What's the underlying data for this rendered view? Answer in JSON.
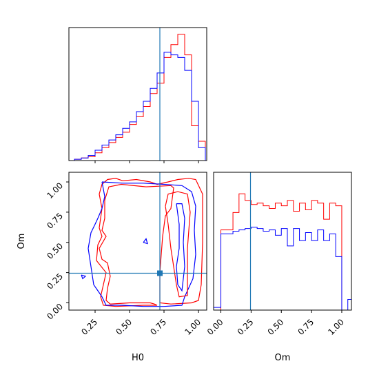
{
  "chart_data": {
    "type": "corner",
    "parameters": [
      "H0",
      "Om"
    ],
    "truths": {
      "H0": 0.72,
      "Om": 0.245
    },
    "truth_color": "#1f77b4",
    "colors": {
      "red": "#ff0000",
      "blue": "#0000ff"
    },
    "ticks": [
      0.0,
      0.25,
      0.5,
      0.75,
      1.0
    ],
    "tick_labels": {
      "H0": [
        "0.25",
        "0.50",
        "0.75",
        "1.00"
      ],
      "Om": [
        "0.00",
        "0.25",
        "0.50",
        "0.75",
        "1.00"
      ]
    },
    "xlabels": {
      "bottom_left": "H0",
      "bottom_right": "Om"
    },
    "ylabel": "Om",
    "ranges": {
      "H0": [
        0.06,
        1.06
      ],
      "Om": [
        -0.06,
        1.08
      ]
    },
    "hist_H0": {
      "edges": [
        0.1,
        0.15,
        0.2,
        0.25,
        0.3,
        0.35,
        0.4,
        0.45,
        0.5,
        0.55,
        0.6,
        0.65,
        0.7,
        0.75,
        0.8,
        0.85,
        0.9,
        0.95,
        1.0,
        1.05
      ],
      "series": [
        {
          "color": "red",
          "values": [
            0.01,
            0.02,
            0.03,
            0.06,
            0.1,
            0.14,
            0.18,
            0.22,
            0.28,
            0.34,
            0.42,
            0.52,
            0.6,
            0.8,
            0.9,
            0.98,
            0.82,
            0.27,
            0.15
          ]
        },
        {
          "color": "blue",
          "values": [
            0.01,
            0.02,
            0.04,
            0.08,
            0.12,
            0.16,
            0.2,
            0.25,
            0.3,
            0.38,
            0.46,
            0.56,
            0.68,
            0.84,
            0.82,
            0.8,
            0.7,
            0.46,
            0.1
          ]
        }
      ]
    },
    "hist_Om": {
      "edges": [
        -0.1,
        -0.05,
        0.0,
        0.05,
        0.1,
        0.15,
        0.2,
        0.25,
        0.3,
        0.35,
        0.4,
        0.45,
        0.5,
        0.55,
        0.6,
        0.65,
        0.7,
        0.75,
        0.8,
        0.85,
        0.9,
        0.95,
        1.0,
        1.05,
        1.1
      ],
      "series": [
        {
          "color": "red",
          "values": [
            0.0,
            0.0,
            0.6,
            0.6,
            0.73,
            0.87,
            0.82,
            0.79,
            0.8,
            0.78,
            0.76,
            0.8,
            0.78,
            0.82,
            0.74,
            0.8,
            0.75,
            0.82,
            0.8,
            0.68,
            0.8,
            0.78,
            0.0,
            0.0
          ]
        },
        {
          "color": "blue",
          "values": [
            0.02,
            0.02,
            0.57,
            0.57,
            0.59,
            0.6,
            0.61,
            0.62,
            0.61,
            0.59,
            0.6,
            0.56,
            0.61,
            0.48,
            0.61,
            0.52,
            0.58,
            0.52,
            0.6,
            0.52,
            0.57,
            0.4,
            0.0,
            0.08
          ]
        }
      ]
    },
    "contours": [
      {
        "color": "red",
        "points": [
          [
            0.45,
            1.01
          ],
          [
            0.55,
            1.02
          ],
          [
            0.65,
            1.0
          ],
          [
            0.7,
            0.98
          ],
          [
            0.78,
            1.0
          ],
          [
            0.85,
            1.02
          ],
          [
            0.93,
            1.03
          ],
          [
            0.98,
            1.02
          ],
          [
            1.03,
            0.9
          ],
          [
            1.03,
            0.5
          ],
          [
            1.02,
            0.15
          ],
          [
            1.0,
            0.02
          ],
          [
            0.95,
            0.0
          ],
          [
            0.8,
            -0.01
          ],
          [
            0.72,
            0.0
          ],
          [
            0.72,
            0.25
          ],
          [
            0.74,
            0.55
          ],
          [
            0.76,
            0.72
          ],
          [
            0.8,
            0.78
          ],
          [
            0.82,
            0.95
          ],
          [
            0.8,
            0.97
          ],
          [
            0.62,
            0.96
          ],
          [
            0.44,
            0.98
          ],
          [
            0.35,
            0.96
          ],
          [
            0.32,
            0.85
          ],
          [
            0.32,
            0.7
          ],
          [
            0.3,
            0.6
          ],
          [
            0.33,
            0.55
          ],
          [
            0.28,
            0.45
          ],
          [
            0.3,
            0.36
          ],
          [
            0.34,
            0.33
          ],
          [
            0.36,
            0.22
          ],
          [
            0.34,
            0.12
          ],
          [
            0.33,
            0.02
          ],
          [
            0.36,
            -0.01
          ],
          [
            0.5,
            0.0
          ],
          [
            0.65,
            0.0
          ],
          [
            0.68,
            -0.01
          ],
          [
            0.7,
            -0.02
          ],
          [
            0.6,
            -0.02
          ],
          [
            0.4,
            -0.03
          ],
          [
            0.31,
            -0.02
          ],
          [
            0.29,
            0.05
          ],
          [
            0.31,
            0.15
          ],
          [
            0.33,
            0.25
          ],
          [
            0.26,
            0.35
          ],
          [
            0.27,
            0.48
          ],
          [
            0.3,
            0.55
          ],
          [
            0.28,
            0.62
          ],
          [
            0.3,
            0.78
          ],
          [
            0.28,
            0.9
          ],
          [
            0.3,
            0.98
          ],
          [
            0.34,
            1.02
          ],
          [
            0.4,
            1.03
          ],
          [
            0.45,
            1.01
          ]
        ]
      },
      {
        "color": "blue",
        "points": [
          [
            0.3,
            1.0
          ],
          [
            0.45,
            0.99
          ],
          [
            0.6,
            0.99
          ],
          [
            0.75,
            0.98
          ],
          [
            0.88,
            0.97
          ],
          [
            0.95,
            0.92
          ],
          [
            0.98,
            0.8
          ],
          [
            0.97,
            0.6
          ],
          [
            0.98,
            0.4
          ],
          [
            0.96,
            0.2
          ],
          [
            0.9,
            0.05
          ],
          [
            0.88,
            -0.02
          ],
          [
            0.75,
            -0.03
          ],
          [
            0.6,
            -0.03
          ],
          [
            0.45,
            -0.02
          ],
          [
            0.33,
            -0.02
          ],
          [
            0.3,
            0.05
          ],
          [
            0.27,
            0.1
          ],
          [
            0.24,
            0.15
          ],
          [
            0.22,
            0.3
          ],
          [
            0.2,
            0.45
          ],
          [
            0.22,
            0.58
          ],
          [
            0.25,
            0.65
          ],
          [
            0.27,
            0.7
          ],
          [
            0.3,
            0.78
          ],
          [
            0.32,
            0.88
          ],
          [
            0.3,
            1.0
          ]
        ]
      },
      {
        "color": "red",
        "points": [
          [
            0.76,
            0.8
          ],
          [
            0.78,
            0.65
          ],
          [
            0.8,
            0.45
          ],
          [
            0.82,
            0.3
          ],
          [
            0.84,
            0.15
          ],
          [
            0.86,
            0.05
          ],
          [
            0.92,
            0.06
          ],
          [
            0.92,
            0.25
          ],
          [
            0.92,
            0.45
          ],
          [
            0.93,
            0.6
          ],
          [
            0.94,
            0.75
          ],
          [
            0.92,
            0.9
          ],
          [
            0.85,
            0.92
          ],
          [
            0.78,
            0.9
          ],
          [
            0.76,
            0.8
          ]
        ]
      },
      {
        "color": "blue",
        "points": [
          [
            0.84,
            0.82
          ],
          [
            0.86,
            0.65
          ],
          [
            0.86,
            0.45
          ],
          [
            0.84,
            0.3
          ],
          [
            0.85,
            0.15
          ],
          [
            0.88,
            0.1
          ],
          [
            0.9,
            0.3
          ],
          [
            0.89,
            0.5
          ],
          [
            0.9,
            0.7
          ],
          [
            0.88,
            0.82
          ],
          [
            0.84,
            0.82
          ]
        ]
      },
      {
        "color": "blue",
        "points": [
          [
            0.15,
            0.23
          ],
          [
            0.18,
            0.22
          ],
          [
            0.16,
            0.2
          ],
          [
            0.15,
            0.23
          ]
        ]
      },
      {
        "color": "blue",
        "points": [
          [
            0.6,
            0.5
          ],
          [
            0.62,
            0.53
          ],
          [
            0.63,
            0.49
          ],
          [
            0.6,
            0.5
          ]
        ]
      }
    ]
  }
}
